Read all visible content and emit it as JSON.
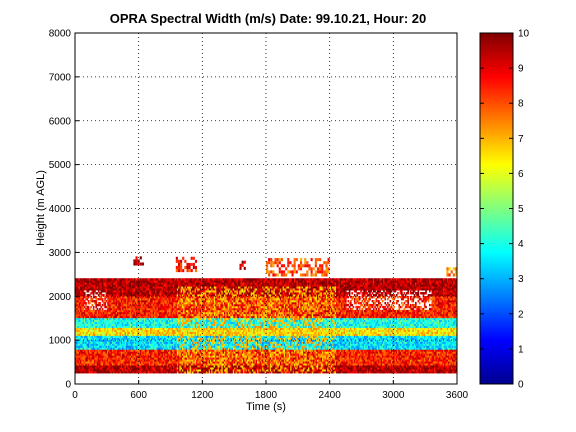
{
  "chart_data": {
    "type": "heatmap",
    "title": "OPRA Spectral Width (m/s)  Date: 99.10.21, Hour: 20",
    "xlabel": "Time (s)",
    "ylabel": "Height (m AGL)",
    "xlim": [
      0,
      3600
    ],
    "ylim": [
      0,
      8000
    ],
    "x_ticks": [
      "0",
      "600",
      "1200",
      "1800",
      "2400",
      "3000",
      "3600"
    ],
    "y_ticks": [
      "0",
      "1000",
      "2000",
      "3000",
      "4000",
      "5000",
      "6000",
      "7000",
      "8000"
    ],
    "grid": true,
    "colorbar": {
      "colormap": "jet",
      "range": [
        0,
        10
      ],
      "ticks": [
        "0",
        "1",
        "2",
        "3",
        "4",
        "5",
        "6",
        "7",
        "8",
        "9",
        "10"
      ]
    },
    "bands": [
      {
        "height_range": [
          250,
          450
        ],
        "value": 9.5,
        "description": "dark red near surface"
      },
      {
        "height_range": [
          450,
          800
        ],
        "value": 8.5,
        "description": "red/orange"
      },
      {
        "height_range": [
          800,
          1100
        ],
        "value": 3.5,
        "description": "cyan band"
      },
      {
        "height_range": [
          1100,
          1300
        ],
        "value": 6.5,
        "description": "yellow"
      },
      {
        "height_range": [
          1300,
          1500
        ],
        "value": 4.0,
        "description": "cyan band"
      },
      {
        "height_range": [
          1500,
          2000
        ],
        "value": 8.5,
        "description": "red with gaps"
      },
      {
        "height_range": [
          2000,
          2400
        ],
        "value": 9.5,
        "description": "dark red with gaps"
      }
    ],
    "sparse_points": [
      {
        "x_range": [
          550,
          650
        ],
        "height_range": [
          2700,
          2850
        ],
        "value": 9.5
      },
      {
        "x_range": [
          950,
          1150
        ],
        "height_range": [
          2550,
          2850
        ],
        "value": 8.5
      },
      {
        "x_range": [
          1550,
          1600
        ],
        "height_range": [
          2600,
          2800
        ],
        "value": 9.5
      },
      {
        "x_range": [
          1800,
          2400
        ],
        "height_range": [
          2450,
          2850
        ],
        "value": 8.0
      },
      {
        "x_range": [
          3500,
          3600
        ],
        "height_range": [
          2450,
          2650
        ],
        "value": 7.5
      }
    ],
    "echo_top_m": 2400,
    "echo_bottom_m": 250
  }
}
